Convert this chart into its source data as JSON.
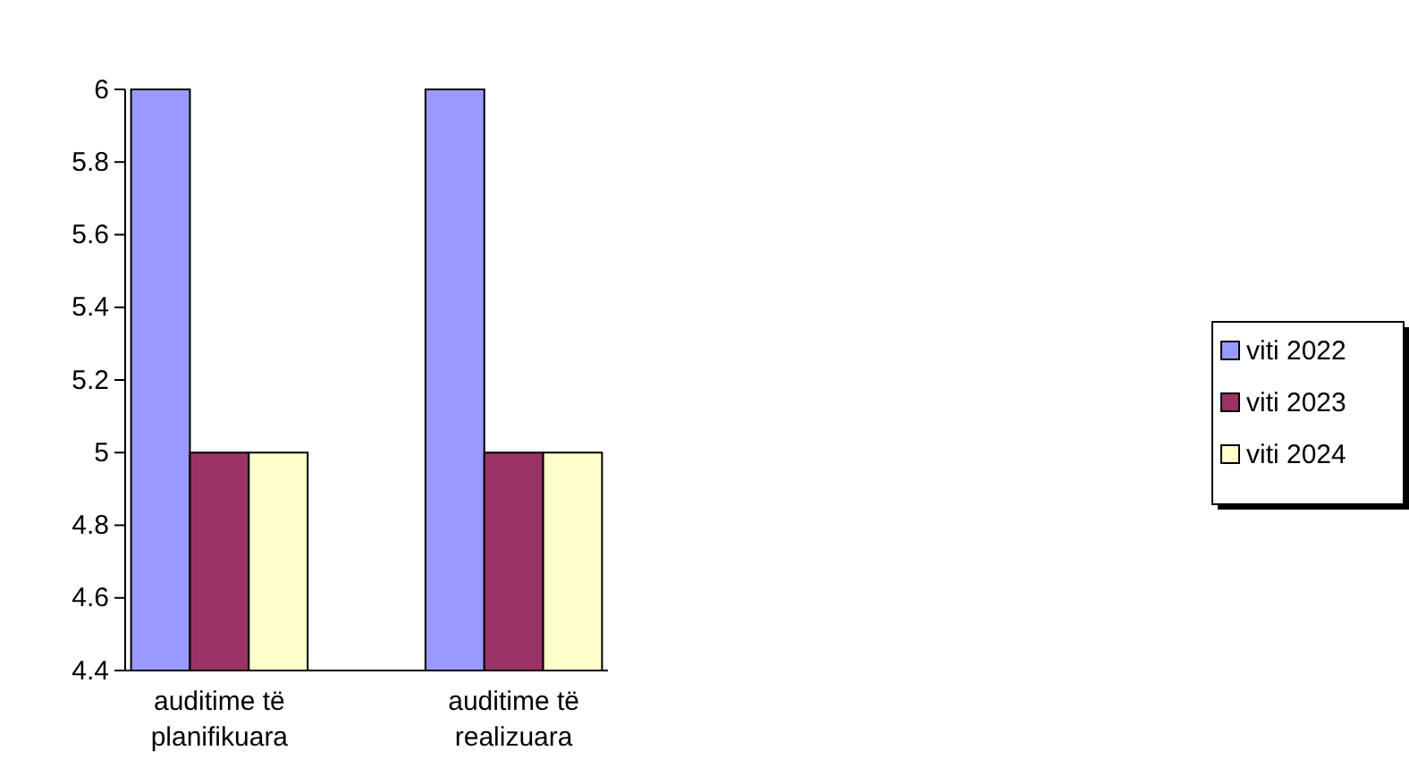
{
  "chart_data": {
    "type": "bar",
    "categories": [
      "auditime të planifikuara",
      "auditime të realizuara"
    ],
    "series": [
      {
        "name": "viti 2022",
        "color": "#9999ff",
        "values": [
          6,
          6
        ]
      },
      {
        "name": "viti 2023",
        "color": "#993366",
        "values": [
          5,
          5
        ]
      },
      {
        "name": "viti 2024",
        "color": "#ffffcc",
        "values": [
          5,
          5
        ]
      }
    ],
    "ylim": [
      4.4,
      6
    ],
    "yticks": [
      4.4,
      4.6,
      4.8,
      5,
      5.2,
      5.4,
      5.6,
      5.8,
      6
    ],
    "grid": false,
    "legend": "right"
  }
}
